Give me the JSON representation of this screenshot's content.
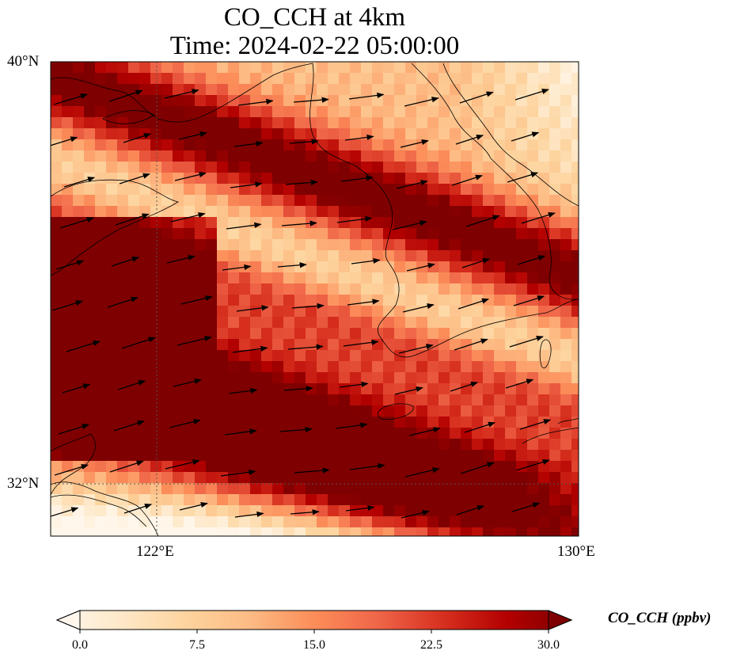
{
  "title_line1": "CO_CCH at 4km",
  "title_line2": "Time: 2024-02-22 05:00:00",
  "lat_ticks": [
    "40°N",
    "32°N"
  ],
  "lon_ticks": [
    "122°E",
    "130°E"
  ],
  "colorbar": {
    "label": "CO_CCH (ppbv)",
    "ticks": [
      "0.0",
      "7.5",
      "15.0",
      "22.5",
      "30.0"
    ],
    "min": 0,
    "max": 30,
    "extend": "both",
    "colormap": [
      "#fff7ec",
      "#fee8c8",
      "#fdd49e",
      "#fdbb84",
      "#fc8d59",
      "#ef6548",
      "#d7301f",
      "#b30000",
      "#7f0000"
    ]
  },
  "map": {
    "lon_range": [
      120,
      130
    ],
    "lat_range": [
      31,
      40
    ],
    "gridlines": [
      {
        "lon": 122
      },
      {
        "lat": 32
      }
    ],
    "wind_direction": "mostly west to east, slightly north-eastward"
  }
}
